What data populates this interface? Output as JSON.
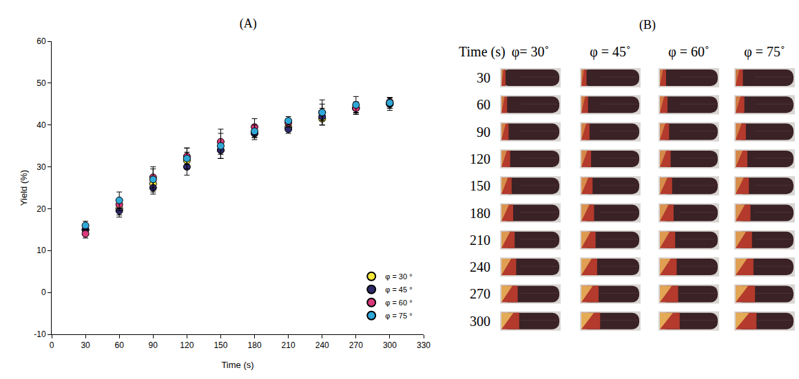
{
  "chart_data": {
    "type": "scatter",
    "title": "(A)",
    "x_label": "Time (s)",
    "y_label": "Yield (%)",
    "x": [
      30,
      60,
      90,
      120,
      150,
      180,
      210,
      240,
      270,
      300
    ],
    "series": [
      {
        "name": "φ = 30 °",
        "color": "#f5e83a",
        "marker": "circle",
        "values": [
          15,
          20,
          26,
          31.5,
          34,
          38,
          39.5,
          41.5,
          44,
          45
        ],
        "errors": [
          1,
          1.5,
          2,
          2,
          2,
          1.5,
          1,
          1.5,
          1,
          1
        ]
      },
      {
        "name": "φ = 45 °",
        "color": "#2e2a6b",
        "marker": "circle",
        "values": [
          15,
          19.5,
          25,
          30,
          34,
          38,
          39,
          42,
          44,
          45
        ],
        "errors": [
          1,
          1.5,
          1.5,
          2,
          2,
          1,
          1,
          2,
          1.5,
          1.5
        ]
      },
      {
        "name": "φ = 60 °",
        "color": "#d63a7a",
        "marker": "circle",
        "values": [
          14,
          21,
          27.5,
          32.5,
          36,
          39.5,
          40.5,
          43,
          44,
          45.5
        ],
        "errors": [
          1,
          1.5,
          2.5,
          2,
          3,
          2,
          1,
          3,
          1.5,
          1
        ]
      },
      {
        "name": "φ = 75 °",
        "color": "#2fa8d8",
        "marker": "circle",
        "values": [
          16,
          22,
          27,
          32,
          35,
          38.5,
          41,
          43,
          44.8,
          45.3
        ],
        "errors": [
          1,
          2,
          2.5,
          2.5,
          3,
          1.5,
          1,
          2,
          2,
          1.3
        ]
      }
    ],
    "xlim": [
      0,
      330
    ],
    "xticks": [
      0,
      30,
      60,
      90,
      120,
      150,
      180,
      210,
      240,
      270,
      300,
      330
    ],
    "ylim": [
      -10,
      60
    ],
    "yticks": [
      -10,
      0,
      10,
      20,
      30,
      40,
      50,
      60
    ],
    "grid": false,
    "legend": "bottom right"
  },
  "image_grid": {
    "label": "(B)",
    "row_header": "Time (s)",
    "columns": [
      "φ= 30˚",
      "φ = 45˚",
      "φ = 60˚",
      "φ = 75˚"
    ],
    "rows": [
      30,
      60,
      90,
      120,
      150,
      180,
      210,
      240,
      270,
      300
    ]
  }
}
